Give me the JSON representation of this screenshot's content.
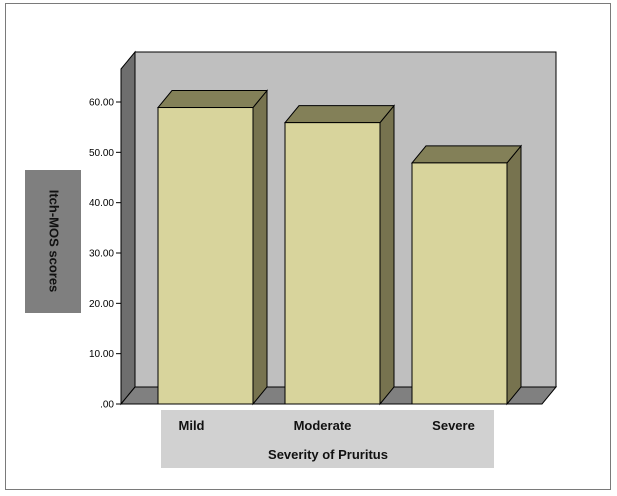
{
  "chart_data": {
    "type": "bar",
    "categories": [
      "Mild",
      "Moderate",
      "Severe"
    ],
    "values": [
      58.9,
      55.9,
      47.9
    ],
    "xlabel": "Severity of Pruritus",
    "ylabel": "Itch-MOS scores",
    "yticks": [
      ".00",
      "10.00",
      "20.00",
      "30.00",
      "40.00",
      "50.00",
      "60.00"
    ],
    "ylim": [
      0,
      60
    ],
    "grid": false,
    "style": "3d-bars",
    "colors": {
      "bar_front": "#d8d49c",
      "bar_top": "#838058",
      "bar_side": "#77734f",
      "back_wall": "#bfbfbf",
      "left_wall": "#6e6e6e",
      "floor": "#808080",
      "axis_title_bg": "#7f7f7f",
      "xlabel_bg": "#d1d1d1"
    }
  }
}
